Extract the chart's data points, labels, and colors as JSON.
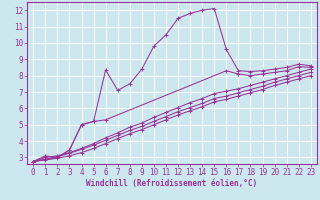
{
  "background_color": "#cce8ee",
  "grid_color": "#ffffff",
  "line_color": "#993399",
  "xlabel": "Windchill (Refroidissement éolien,°C)",
  "xlim": [
    -0.5,
    23.5
  ],
  "ylim": [
    2.6,
    12.5
  ],
  "xticks": [
    0,
    1,
    2,
    3,
    4,
    5,
    6,
    7,
    8,
    9,
    10,
    11,
    12,
    13,
    14,
    15,
    16,
    17,
    18,
    19,
    20,
    21,
    22,
    23
  ],
  "yticks": [
    3,
    4,
    5,
    6,
    7,
    8,
    9,
    10,
    11,
    12
  ],
  "series1_x": [
    0,
    1,
    2,
    3,
    4,
    5,
    6,
    7,
    8,
    9,
    10,
    11,
    12,
    13,
    14,
    15,
    16,
    17,
    18,
    19,
    20,
    21,
    22,
    23
  ],
  "series1_y": [
    2.75,
    3.1,
    3.0,
    3.45,
    5.0,
    5.2,
    8.35,
    7.1,
    7.5,
    8.4,
    9.8,
    10.5,
    11.5,
    11.8,
    12.0,
    12.1,
    9.6,
    8.3,
    8.25,
    8.3,
    8.4,
    8.5,
    8.7,
    8.6
  ],
  "series2_x": [
    0,
    2,
    3,
    4,
    5,
    6,
    16,
    17,
    18,
    19,
    20,
    21,
    22,
    23
  ],
  "series2_y": [
    2.75,
    3.0,
    3.45,
    5.0,
    5.2,
    5.3,
    8.3,
    8.1,
    8.0,
    8.1,
    8.2,
    8.3,
    8.55,
    8.5
  ],
  "series3_x": [
    0,
    1,
    2,
    3,
    4,
    5,
    6,
    7,
    8,
    9,
    10,
    11,
    12,
    13,
    14,
    15,
    16,
    17,
    18,
    19,
    20,
    21,
    22,
    23
  ],
  "series3_y": [
    2.75,
    3.0,
    3.1,
    3.3,
    3.55,
    3.85,
    4.2,
    4.5,
    4.85,
    5.1,
    5.45,
    5.75,
    6.05,
    6.35,
    6.6,
    6.9,
    7.05,
    7.2,
    7.4,
    7.6,
    7.8,
    8.0,
    8.2,
    8.4
  ],
  "series4_x": [
    0,
    1,
    2,
    3,
    4,
    5,
    6,
    7,
    8,
    9,
    10,
    11,
    12,
    13,
    14,
    15,
    16,
    17,
    18,
    19,
    20,
    21,
    22,
    23
  ],
  "series4_y": [
    2.75,
    2.9,
    3.05,
    3.25,
    3.5,
    3.75,
    4.05,
    4.35,
    4.65,
    4.9,
    5.2,
    5.5,
    5.8,
    6.05,
    6.3,
    6.6,
    6.75,
    6.95,
    7.15,
    7.35,
    7.6,
    7.8,
    8.0,
    8.2
  ],
  "series5_x": [
    0,
    1,
    2,
    3,
    4,
    5,
    6,
    7,
    8,
    9,
    10,
    11,
    12,
    13,
    14,
    15,
    16,
    17,
    18,
    19,
    20,
    21,
    22,
    23
  ],
  "series5_y": [
    2.75,
    2.85,
    2.95,
    3.1,
    3.3,
    3.55,
    3.85,
    4.15,
    4.45,
    4.7,
    5.0,
    5.3,
    5.6,
    5.85,
    6.1,
    6.4,
    6.55,
    6.75,
    6.95,
    7.15,
    7.4,
    7.6,
    7.8,
    8.0
  ],
  "xlabel_fontsize": 5.5,
  "tick_fontsize": 5.5
}
